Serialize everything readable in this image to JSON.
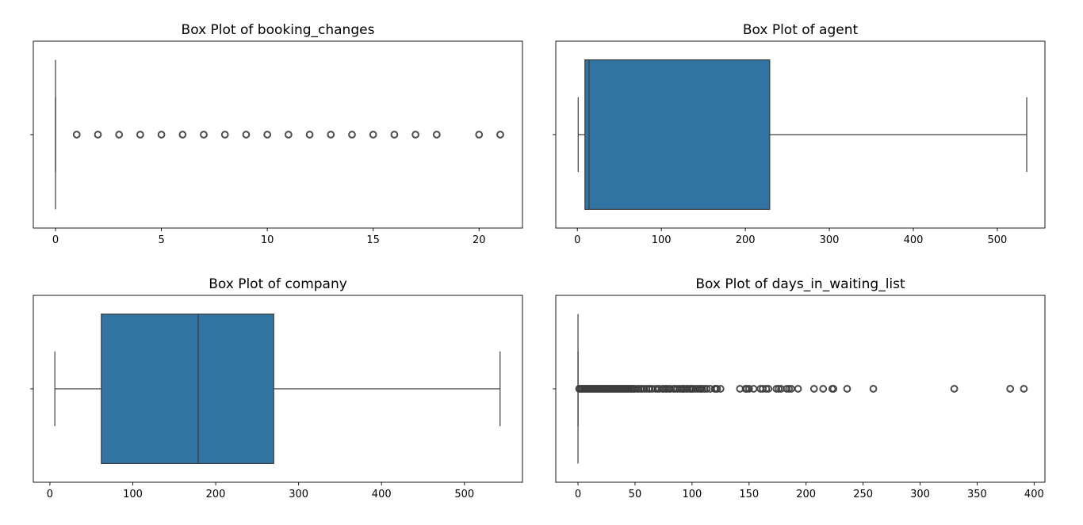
{
  "chart_data": [
    {
      "type": "box",
      "title": "Box Plot of booking_changes",
      "xlabel": "",
      "ylabel": "",
      "xlim": [
        -1.05,
        22.05
      ],
      "xticks": [
        0,
        5,
        10,
        15,
        20
      ],
      "box": {
        "min": 0,
        "q1": 0,
        "median": 0,
        "q3": 0,
        "max": 0
      },
      "outliers": [
        1,
        2,
        3,
        4,
        5,
        6,
        7,
        8,
        9,
        10,
        11,
        12,
        13,
        14,
        15,
        16,
        17,
        18,
        20,
        21
      ],
      "color": "#3274a1"
    },
    {
      "type": "box",
      "title": "Box Plot of agent",
      "xlabel": "",
      "ylabel": "",
      "xlim": [
        -25.7,
        556.7
      ],
      "xticks": [
        0,
        100,
        200,
        300,
        400,
        500
      ],
      "box": {
        "min": 1,
        "q1": 9,
        "median": 14,
        "q3": 229,
        "max": 535
      },
      "outliers": [],
      "color": "#3274a1"
    },
    {
      "type": "box",
      "title": "Box Plot of company",
      "xlabel": "",
      "ylabel": "",
      "xlim": [
        -20.0,
        570.0
      ],
      "xticks": [
        0,
        100,
        200,
        300,
        400,
        500
      ],
      "box": {
        "min": 6,
        "q1": 62,
        "median": 179,
        "q3": 270,
        "max": 543
      },
      "outliers": [],
      "color": "#3274a1"
    },
    {
      "type": "box",
      "title": "Box Plot of days_in_waiting_list",
      "xlabel": "",
      "ylabel": "",
      "xlim": [
        -19.5,
        409.5
      ],
      "xticks": [
        0,
        50,
        100,
        150,
        200,
        250,
        300,
        350,
        400
      ],
      "box": {
        "min": 0,
        "q1": 0,
        "median": 0,
        "q3": 0,
        "max": 0
      },
      "outliers": [
        1,
        2,
        3,
        4,
        5,
        6,
        7,
        8,
        9,
        10,
        11,
        12,
        13,
        14,
        15,
        16,
        17,
        18,
        19,
        20,
        21,
        22,
        23,
        24,
        25,
        26,
        27,
        28,
        29,
        30,
        31,
        32,
        33,
        34,
        35,
        36,
        37,
        38,
        39,
        40,
        41,
        42,
        43,
        44,
        45,
        46,
        47,
        48,
        49,
        50,
        52,
        53,
        55,
        56,
        58,
        60,
        62,
        63,
        65,
        68,
        70,
        71,
        74,
        75,
        77,
        78,
        80,
        81,
        84,
        85,
        87,
        89,
        91,
        92,
        93,
        95,
        96,
        98,
        99,
        100,
        101,
        103,
        105,
        107,
        108,
        109,
        111,
        113,
        116,
        120,
        121,
        122,
        125,
        142,
        147,
        148,
        150,
        154,
        160,
        162,
        165,
        167,
        174,
        176,
        178,
        183,
        185,
        187,
        193,
        207,
        215,
        223,
        224,
        236,
        259,
        330,
        379,
        391
      ],
      "color": "#3274a1"
    }
  ]
}
